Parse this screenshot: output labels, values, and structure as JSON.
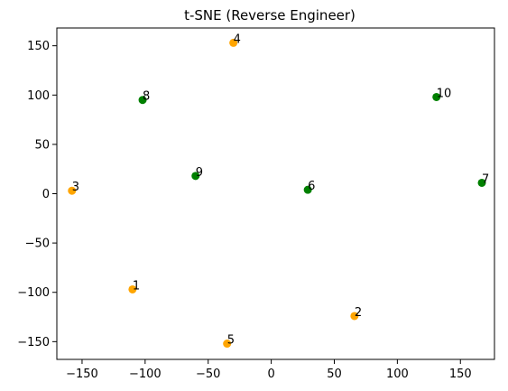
{
  "chart_data": {
    "type": "scatter",
    "title": "t-SNE (Reverse Engineer)",
    "xlabel": "",
    "ylabel": "",
    "xlim": [
      -170,
      177
    ],
    "ylim": [
      -168,
      168
    ],
    "xticks": [
      -150,
      -100,
      -50,
      0,
      50,
      100,
      150
    ],
    "yticks": [
      -150,
      -100,
      -50,
      0,
      50,
      100,
      150
    ],
    "xtick_labels": [
      "−150",
      "−100",
      "−50",
      "0",
      "50",
      "100",
      "150"
    ],
    "ytick_labels": [
      "−150",
      "−100",
      "−50",
      "0",
      "50",
      "100",
      "150"
    ],
    "grid": false,
    "colors": {
      "orange": "#ffa500",
      "green": "#008000"
    },
    "points": [
      {
        "label": "1",
        "x": -110,
        "y": -97,
        "color": "orange"
      },
      {
        "label": "2",
        "x": 66,
        "y": -124,
        "color": "orange"
      },
      {
        "label": "3",
        "x": -158,
        "y": 3,
        "color": "orange"
      },
      {
        "label": "4",
        "x": -30,
        "y": 153,
        "color": "orange"
      },
      {
        "label": "5",
        "x": -35,
        "y": -152,
        "color": "orange"
      },
      {
        "label": "6",
        "x": 29,
        "y": 4,
        "color": "green"
      },
      {
        "label": "7",
        "x": 167,
        "y": 11,
        "color": "green"
      },
      {
        "label": "8",
        "x": -102,
        "y": 95,
        "color": "green"
      },
      {
        "label": "9",
        "x": -60,
        "y": 18,
        "color": "green"
      },
      {
        "label": "10",
        "x": 131,
        "y": 98,
        "color": "green"
      }
    ]
  }
}
